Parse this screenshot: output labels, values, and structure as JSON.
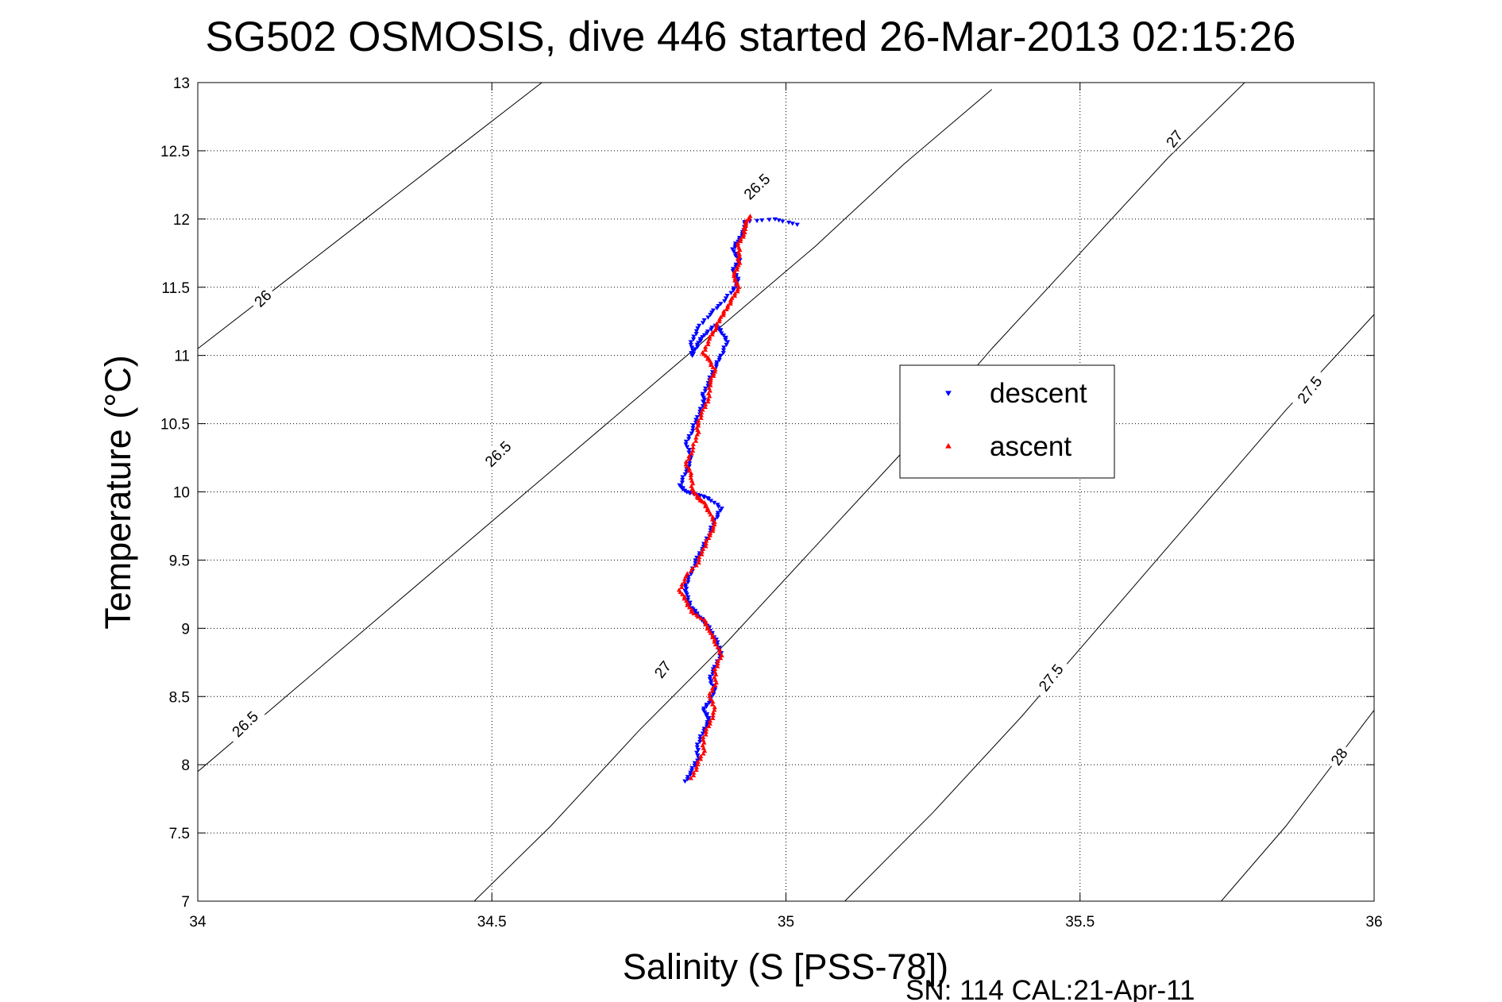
{
  "chart_data": {
    "type": "scatter",
    "title": "SG502 OSMOSIS, dive 446 started 26-Mar-2013 02:15:26",
    "xlabel": "Salinity (S [PSS-78])",
    "ylabel": "Temperature (°C)",
    "footer": "SN: 114  CAL:21-Apr-11",
    "xlim": [
      34,
      36
    ],
    "ylim": [
      7,
      13
    ],
    "xticks": [
      "34",
      "34.5",
      "35",
      "35.5",
      "36"
    ],
    "yticks": [
      "7",
      "7.5",
      "8",
      "8.5",
      "9",
      "9.5",
      "10",
      "10.5",
      "11",
      "11.5",
      "12",
      "12.5",
      "13"
    ],
    "grid": true,
    "legend_position": "upper-right",
    "density_contours": [
      {
        "level": "26",
        "points": [
          [
            34.0,
            11.05
          ],
          [
            34.15,
            11.55
          ],
          [
            34.3,
            12.05
          ],
          [
            34.45,
            12.55
          ],
          [
            34.6,
            13.05
          ]
        ]
      },
      {
        "level": "26.5",
        "points": [
          [
            34.0,
            7.95
          ],
          [
            34.15,
            8.5
          ],
          [
            34.3,
            9.05
          ],
          [
            34.45,
            9.6
          ],
          [
            34.6,
            10.15
          ],
          [
            34.75,
            10.7
          ],
          [
            34.9,
            11.25
          ],
          [
            35.05,
            11.8
          ],
          [
            35.2,
            12.4
          ],
          [
            35.35,
            12.95
          ]
        ]
      },
      {
        "level": "27",
        "points": [
          [
            34.47,
            7.0
          ],
          [
            34.6,
            7.55
          ],
          [
            34.75,
            8.25
          ],
          [
            34.9,
            8.9
          ],
          [
            35.05,
            9.6
          ],
          [
            35.2,
            10.3
          ],
          [
            35.35,
            11.05
          ],
          [
            35.5,
            11.75
          ],
          [
            35.65,
            12.45
          ],
          [
            35.78,
            13.0
          ]
        ]
      },
      {
        "level": "27.5",
        "points": [
          [
            35.1,
            7.0
          ],
          [
            35.25,
            7.65
          ],
          [
            35.4,
            8.35
          ],
          [
            35.55,
            9.1
          ],
          [
            35.7,
            9.85
          ],
          [
            35.85,
            10.6
          ],
          [
            36.0,
            11.3
          ]
        ]
      },
      {
        "level": "28",
        "points": [
          [
            35.74,
            7.0
          ],
          [
            35.85,
            7.55
          ],
          [
            36.0,
            8.4
          ]
        ]
      }
    ],
    "contour_labels": [
      {
        "text": "26",
        "x": 34.11,
        "y": 11.42,
        "angle": -44
      },
      {
        "text": "26.5",
        "x": 34.08,
        "y": 8.3,
        "angle": -44
      },
      {
        "text": "26.5",
        "x": 34.51,
        "y": 10.28,
        "angle": -44
      },
      {
        "text": "26.5",
        "x": 34.95,
        "y": 12.24,
        "angle": -44
      },
      {
        "text": "27",
        "x": 34.79,
        "y": 8.7,
        "angle": -52
      },
      {
        "text": "27",
        "x": 35.66,
        "y": 12.59,
        "angle": -52
      },
      {
        "text": "27.5",
        "x": 35.45,
        "y": 8.64,
        "angle": -52
      },
      {
        "text": "27.5",
        "x": 35.89,
        "y": 10.75,
        "angle": -52
      },
      {
        "text": "28",
        "x": 35.94,
        "y": 8.06,
        "angle": -55
      }
    ],
    "series": [
      {
        "name": "descent",
        "color": "#0000ff",
        "marker": "triangle-down",
        "points": [
          [
            34.83,
            7.88
          ],
          [
            34.84,
            7.96
          ],
          [
            34.85,
            8.05
          ],
          [
            34.85,
            8.15
          ],
          [
            34.86,
            8.25
          ],
          [
            34.87,
            8.33
          ],
          [
            34.86,
            8.4
          ],
          [
            34.87,
            8.47
          ],
          [
            34.88,
            8.55
          ],
          [
            34.87,
            8.63
          ],
          [
            34.88,
            8.72
          ],
          [
            34.89,
            8.82
          ],
          [
            34.88,
            8.92
          ],
          [
            34.87,
            9.0
          ],
          [
            34.86,
            9.05
          ],
          [
            34.85,
            9.1
          ],
          [
            34.84,
            9.15
          ],
          [
            34.83,
            9.25
          ],
          [
            34.83,
            9.32
          ],
          [
            34.84,
            9.42
          ],
          [
            34.85,
            9.52
          ],
          [
            34.86,
            9.6
          ],
          [
            34.87,
            9.7
          ],
          [
            34.88,
            9.8
          ],
          [
            34.89,
            9.88
          ],
          [
            34.87,
            9.95
          ],
          [
            34.85,
            9.98
          ],
          [
            34.83,
            10.0
          ],
          [
            34.82,
            10.05
          ],
          [
            34.83,
            10.15
          ],
          [
            34.84,
            10.25
          ],
          [
            34.83,
            10.35
          ],
          [
            34.84,
            10.45
          ],
          [
            34.85,
            10.55
          ],
          [
            34.86,
            10.65
          ],
          [
            34.86,
            10.72
          ],
          [
            34.87,
            10.82
          ],
          [
            34.88,
            10.92
          ],
          [
            34.89,
            11.0
          ],
          [
            34.9,
            11.1
          ],
          [
            34.89,
            11.18
          ],
          [
            34.88,
            11.22
          ],
          [
            34.86,
            11.15
          ],
          [
            34.85,
            11.08
          ],
          [
            34.84,
            11.0
          ],
          [
            34.84,
            11.1
          ],
          [
            34.85,
            11.2
          ],
          [
            34.87,
            11.3
          ],
          [
            34.89,
            11.38
          ],
          [
            34.91,
            11.48
          ],
          [
            34.92,
            11.55
          ],
          [
            34.91,
            11.62
          ],
          [
            34.92,
            11.7
          ],
          [
            34.91,
            11.78
          ],
          [
            34.92,
            11.85
          ],
          [
            34.93,
            11.92
          ],
          [
            34.93,
            11.98
          ],
          [
            34.98,
            12.0
          ],
          [
            35.02,
            11.96
          ]
        ]
      },
      {
        "name": "ascent",
        "color": "#ff0000",
        "marker": "triangle-up",
        "points": [
          [
            34.84,
            7.9
          ],
          [
            34.85,
            8.0
          ],
          [
            34.86,
            8.1
          ],
          [
            34.86,
            8.2
          ],
          [
            34.87,
            8.3
          ],
          [
            34.88,
            8.4
          ],
          [
            34.87,
            8.5
          ],
          [
            34.88,
            8.6
          ],
          [
            34.88,
            8.7
          ],
          [
            34.89,
            8.8
          ],
          [
            34.88,
            8.9
          ],
          [
            34.87,
            8.98
          ],
          [
            34.86,
            9.06
          ],
          [
            34.84,
            9.12
          ],
          [
            34.83,
            9.2
          ],
          [
            34.82,
            9.28
          ],
          [
            34.83,
            9.38
          ],
          [
            34.85,
            9.48
          ],
          [
            34.86,
            9.58
          ],
          [
            34.87,
            9.68
          ],
          [
            34.88,
            9.76
          ],
          [
            34.87,
            9.85
          ],
          [
            34.86,
            9.92
          ],
          [
            34.85,
            9.96
          ],
          [
            34.84,
            10.02
          ],
          [
            34.84,
            10.12
          ],
          [
            34.83,
            10.2
          ],
          [
            34.84,
            10.3
          ],
          [
            34.85,
            10.42
          ],
          [
            34.85,
            10.5
          ],
          [
            34.86,
            10.6
          ],
          [
            34.87,
            10.7
          ],
          [
            34.87,
            10.8
          ],
          [
            34.88,
            10.88
          ],
          [
            34.87,
            10.96
          ],
          [
            34.86,
            11.02
          ],
          [
            34.87,
            11.12
          ],
          [
            34.88,
            11.2
          ],
          [
            34.89,
            11.28
          ],
          [
            34.9,
            11.35
          ],
          [
            34.91,
            11.42
          ],
          [
            34.92,
            11.5
          ],
          [
            34.91,
            11.58
          ],
          [
            34.92,
            11.66
          ],
          [
            34.92,
            11.74
          ],
          [
            34.92,
            11.82
          ],
          [
            34.93,
            11.9
          ],
          [
            34.93,
            11.96
          ],
          [
            34.94,
            12.02
          ]
        ]
      }
    ]
  }
}
